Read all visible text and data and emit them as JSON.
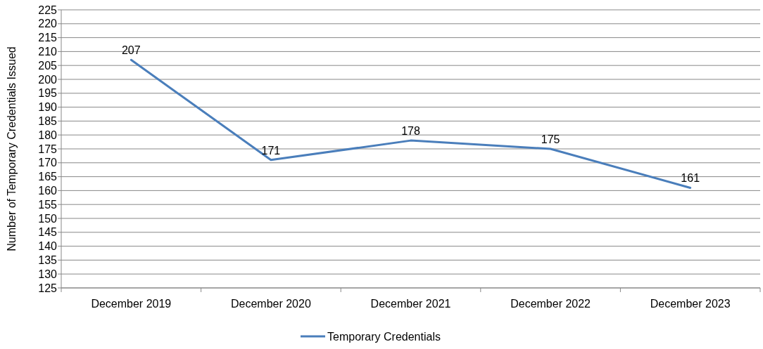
{
  "chart_data": {
    "type": "line",
    "ylabel": "Number of Temporary Credentials Issued",
    "categories": [
      "December 2019",
      "December 2020",
      "December 2021",
      "December 2022",
      "December 2023"
    ],
    "series": [
      {
        "name": "Temporary Credentials",
        "color": "#4a7ebb",
        "values": [
          207,
          171,
          178,
          175,
          161
        ]
      }
    ],
    "ylim": [
      125,
      225
    ],
    "yticks": [
      125,
      130,
      135,
      140,
      145,
      150,
      155,
      160,
      165,
      170,
      175,
      180,
      185,
      190,
      195,
      200,
      205,
      210,
      215,
      220,
      225
    ],
    "grid": "y",
    "legend": "bottom",
    "data_labels": true,
    "marker": "none",
    "line_style": "solid"
  }
}
